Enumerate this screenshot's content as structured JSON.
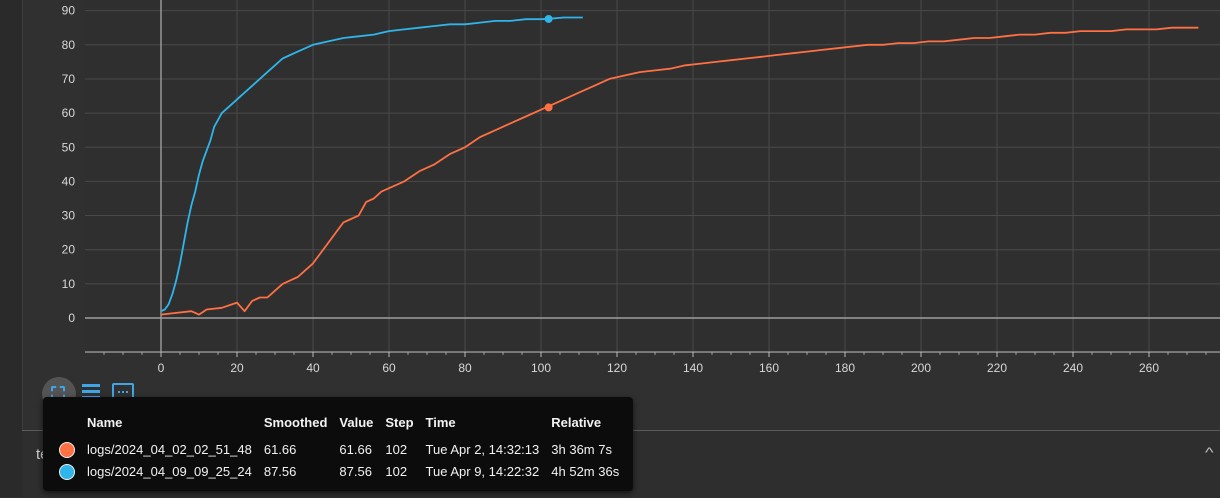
{
  "chart_data": {
    "type": "line",
    "xlim": [
      -20,
      275
    ],
    "ylim": [
      -10,
      92
    ],
    "x_ticks": [
      0,
      20,
      40,
      60,
      80,
      100,
      120,
      140,
      160,
      180,
      200,
      220,
      240,
      260
    ],
    "y_ticks": [
      0,
      10,
      20,
      30,
      40,
      50,
      60,
      70,
      80,
      90
    ],
    "grid": true,
    "series": [
      {
        "name": "logs/2024_04_02_02_51_48",
        "color": "#ff7043",
        "points": [
          [
            0,
            1
          ],
          [
            4,
            1.5
          ],
          [
            8,
            2
          ],
          [
            10,
            1
          ],
          [
            12,
            2.5
          ],
          [
            16,
            3
          ],
          [
            20,
            4.5
          ],
          [
            22,
            2
          ],
          [
            24,
            5
          ],
          [
            26,
            6
          ],
          [
            28,
            6
          ],
          [
            30,
            8
          ],
          [
            32,
            10
          ],
          [
            34,
            11
          ],
          [
            36,
            12
          ],
          [
            38,
            14
          ],
          [
            40,
            16
          ],
          [
            42,
            19
          ],
          [
            44,
            22
          ],
          [
            46,
            25
          ],
          [
            48,
            28
          ],
          [
            50,
            29
          ],
          [
            52,
            30
          ],
          [
            54,
            34
          ],
          [
            56,
            35
          ],
          [
            58,
            37
          ],
          [
            60,
            38
          ],
          [
            64,
            40
          ],
          [
            68,
            43
          ],
          [
            72,
            45
          ],
          [
            76,
            48
          ],
          [
            80,
            50
          ],
          [
            84,
            53
          ],
          [
            88,
            55
          ],
          [
            92,
            57
          ],
          [
            96,
            59
          ],
          [
            100,
            61
          ],
          [
            102,
            62
          ],
          [
            106,
            64
          ],
          [
            110,
            66
          ],
          [
            114,
            68
          ],
          [
            118,
            70
          ],
          [
            122,
            71
          ],
          [
            126,
            72
          ],
          [
            130,
            72.5
          ],
          [
            134,
            73
          ],
          [
            138,
            74
          ],
          [
            142,
            74.5
          ],
          [
            146,
            75
          ],
          [
            150,
            75.5
          ],
          [
            154,
            76
          ],
          [
            158,
            76.5
          ],
          [
            162,
            77
          ],
          [
            166,
            77.5
          ],
          [
            170,
            78
          ],
          [
            174,
            78.5
          ],
          [
            178,
            79
          ],
          [
            182,
            79.5
          ],
          [
            186,
            80
          ],
          [
            190,
            80
          ],
          [
            194,
            80.5
          ],
          [
            198,
            80.5
          ],
          [
            202,
            81
          ],
          [
            206,
            81
          ],
          [
            210,
            81.5
          ],
          [
            214,
            82
          ],
          [
            218,
            82
          ],
          [
            222,
            82.5
          ],
          [
            226,
            83
          ],
          [
            230,
            83
          ],
          [
            234,
            83.5
          ],
          [
            238,
            83.5
          ],
          [
            242,
            84
          ],
          [
            246,
            84
          ],
          [
            250,
            84
          ],
          [
            254,
            84.5
          ],
          [
            258,
            84.5
          ],
          [
            262,
            84.5
          ],
          [
            266,
            85
          ],
          [
            270,
            85
          ],
          [
            273,
            85
          ]
        ],
        "marker": [
          102,
          61.66
        ]
      },
      {
        "name": "logs/2024_04_09_09_25_24",
        "color": "#2fb5ea",
        "points": [
          [
            0,
            2
          ],
          [
            1,
            2.5
          ],
          [
            2,
            4
          ],
          [
            3,
            7
          ],
          [
            4,
            11
          ],
          [
            5,
            16
          ],
          [
            6,
            22
          ],
          [
            7,
            28
          ],
          [
            8,
            33
          ],
          [
            9,
            37
          ],
          [
            10,
            42
          ],
          [
            11,
            46
          ],
          [
            12,
            49
          ],
          [
            13,
            52
          ],
          [
            14,
            56
          ],
          [
            15,
            58
          ],
          [
            16,
            60
          ],
          [
            18,
            62
          ],
          [
            20,
            64
          ],
          [
            22,
            66
          ],
          [
            24,
            68
          ],
          [
            26,
            70
          ],
          [
            28,
            72
          ],
          [
            30,
            74
          ],
          [
            32,
            76
          ],
          [
            34,
            77
          ],
          [
            36,
            78
          ],
          [
            38,
            79
          ],
          [
            40,
            80
          ],
          [
            44,
            81
          ],
          [
            48,
            82
          ],
          [
            52,
            82.5
          ],
          [
            56,
            83
          ],
          [
            60,
            84
          ],
          [
            64,
            84.5
          ],
          [
            68,
            85
          ],
          [
            72,
            85.5
          ],
          [
            76,
            86
          ],
          [
            80,
            86
          ],
          [
            84,
            86.5
          ],
          [
            88,
            87
          ],
          [
            92,
            87
          ],
          [
            96,
            87.5
          ],
          [
            100,
            87.5
          ],
          [
            102,
            87.6
          ],
          [
            106,
            88
          ],
          [
            110,
            88
          ],
          [
            111,
            88
          ]
        ],
        "marker": [
          102,
          87.56
        ]
      }
    ]
  },
  "section": {
    "title": "test_loss"
  },
  "tooltip": {
    "headers": [
      "Name",
      "Smoothed",
      "Value",
      "Step",
      "Time",
      "Relative"
    ],
    "rows": [
      {
        "color": "#ff7043",
        "name": "logs/2024_04_02_02_51_48",
        "smoothed": "61.66",
        "value": "61.66",
        "step": "102",
        "time": "Tue Apr 2, 14:32:13",
        "relative": "3h 36m 7s"
      },
      {
        "color": "#2fb5ea",
        "name": "logs/2024_04_09_09_25_24",
        "smoothed": "87.56",
        "value": "87.56",
        "step": "102",
        "time": "Tue Apr 9, 14:22:32",
        "relative": "4h 52m 36s"
      }
    ]
  },
  "toolbar": {
    "fit_icon": "fit-domain-icon",
    "list_icon": "list-icon",
    "range_icon": "range-select-icon"
  }
}
